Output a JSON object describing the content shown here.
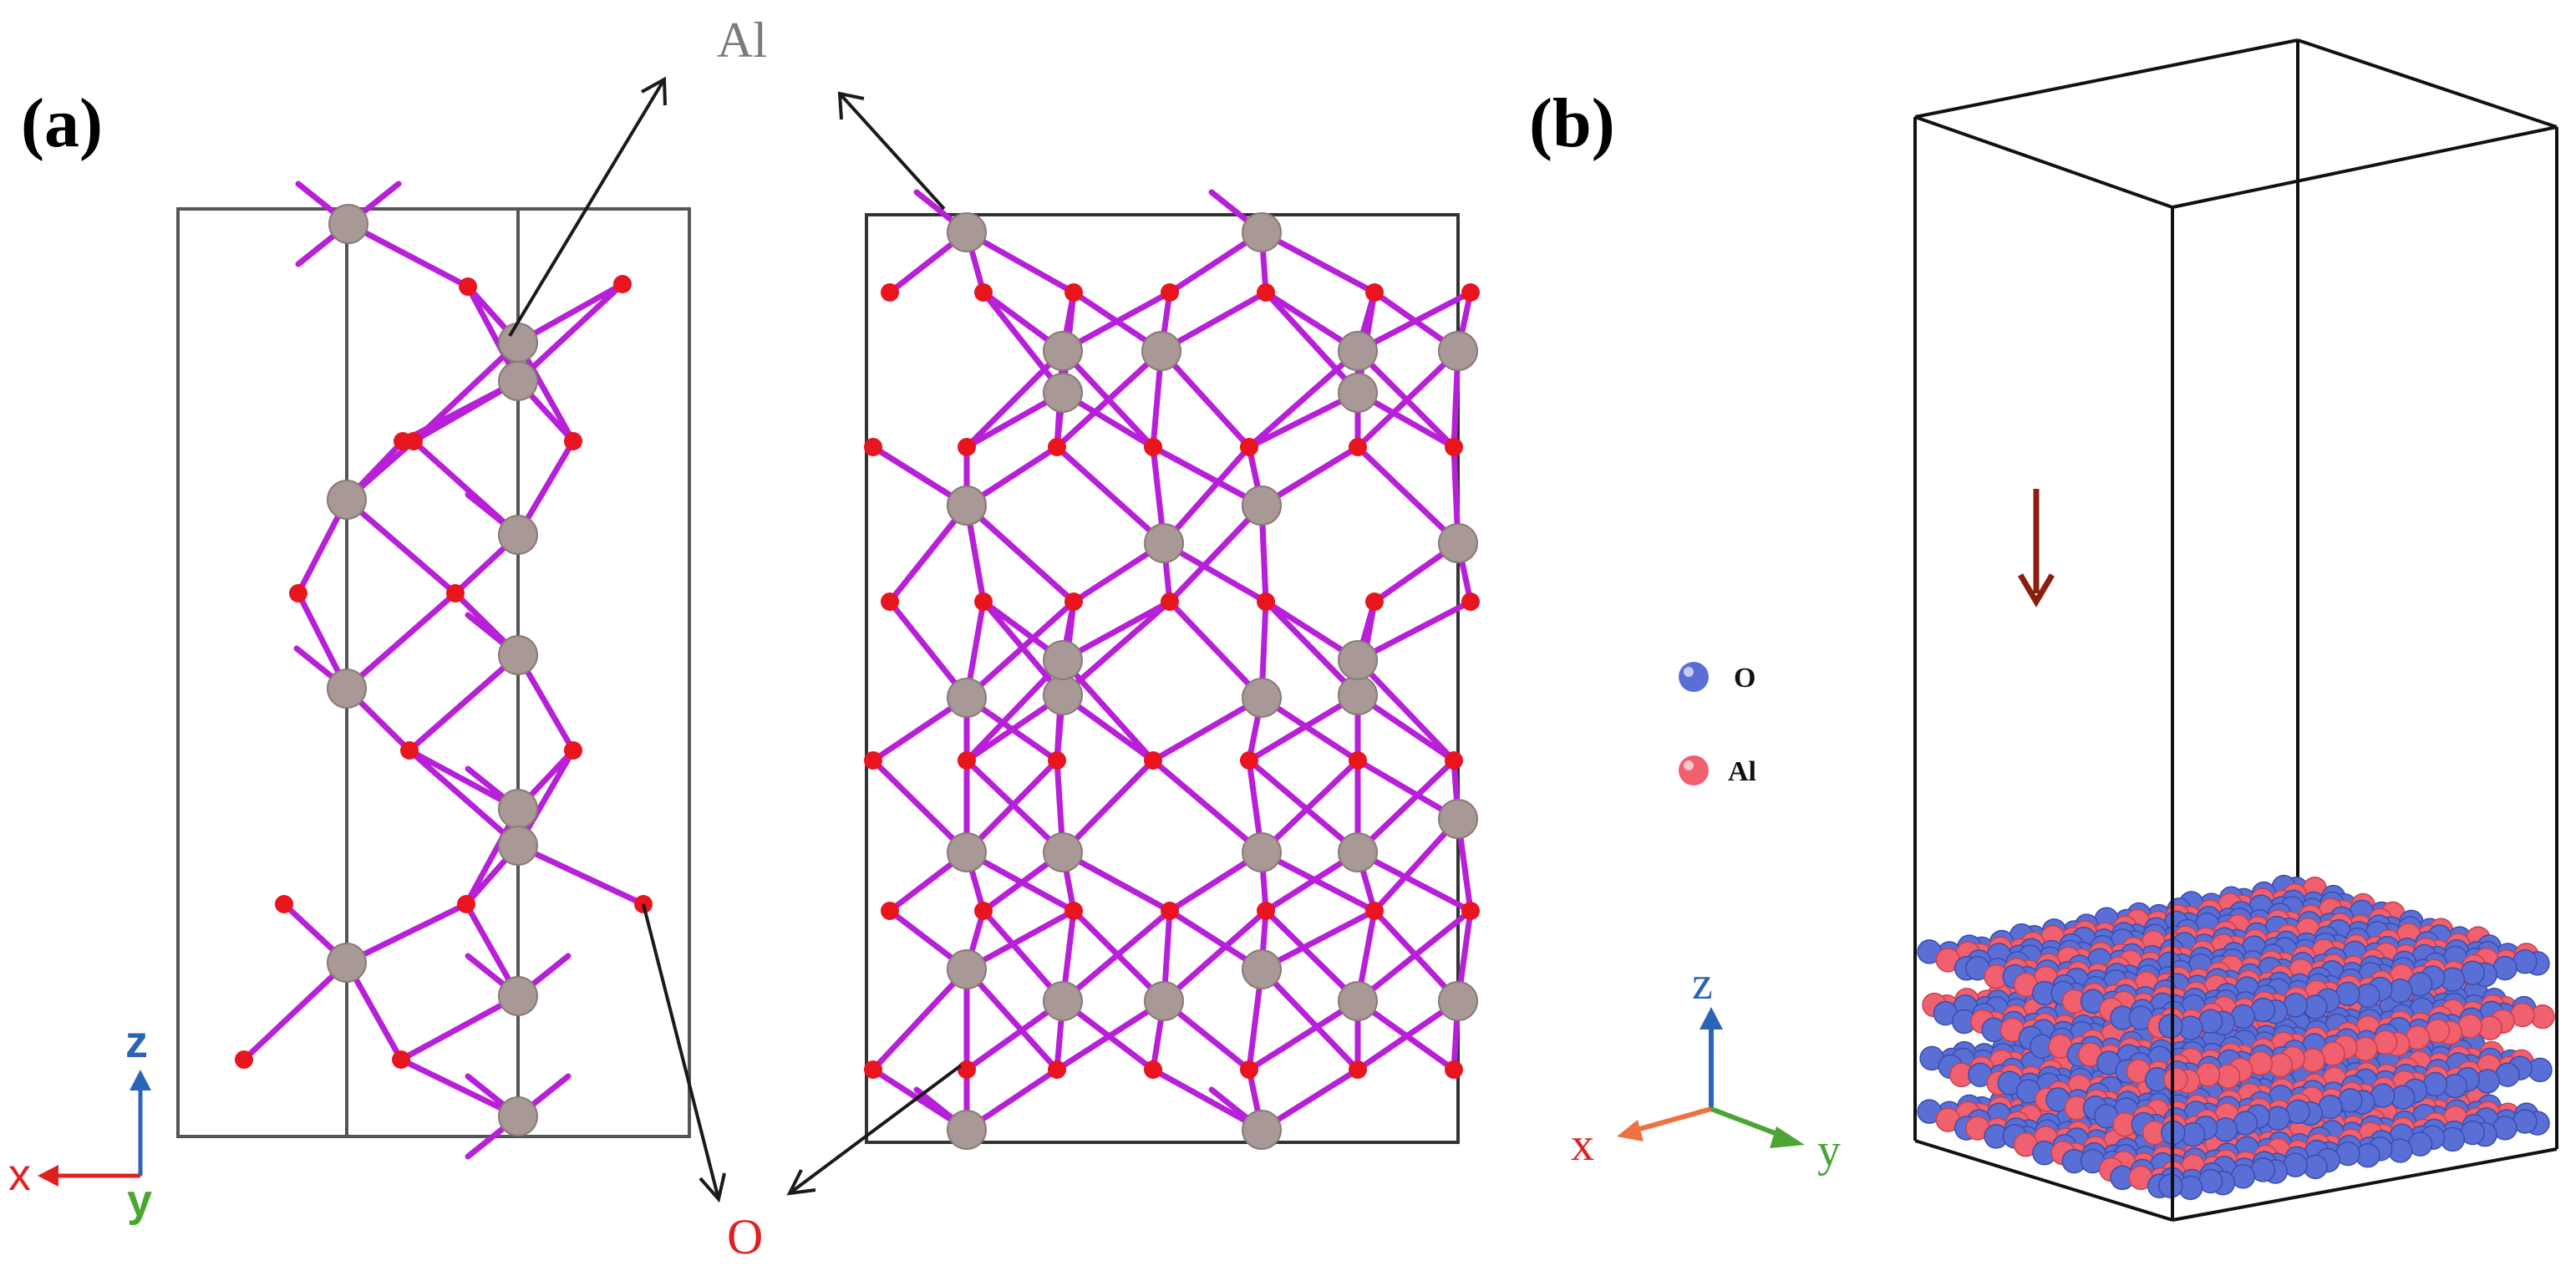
{
  "figure": {
    "panel_a": {
      "label": "(a)",
      "callout_al": "Al",
      "callout_o": "O",
      "axes": {
        "x": "x",
        "y": "y",
        "z": "z"
      }
    },
    "panel_b": {
      "label": "(b)",
      "legend": [
        {
          "label": "O",
          "color": "#5a6fd6"
        },
        {
          "label": "Al",
          "color": "#f0606e"
        }
      ],
      "axes": {
        "x": "x",
        "y": "y",
        "z": "z"
      }
    },
    "colors": {
      "bond": "#b71fd8",
      "al_atom": "#a89896",
      "o_atom": "#e8141e",
      "box_line": "#444444",
      "arrow_down": "#8a1f10",
      "axis_x": "#e02020",
      "axis_y": "#4aa532",
      "axis_z": "#2a64b8",
      "axis_x_b": "#ef7040",
      "callout_al_color": "#7a7a7a",
      "callout_o_color": "#e02020"
    }
  }
}
